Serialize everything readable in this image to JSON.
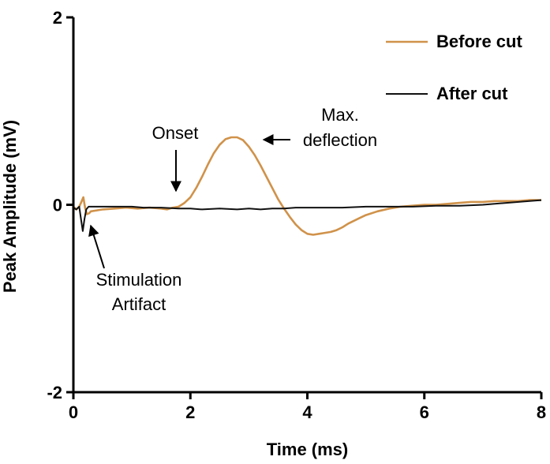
{
  "chart_data": {
    "type": "line",
    "title": "",
    "xlabel": "Time (ms)",
    "ylabel": "Peak Amplitude (mV)",
    "xlim": [
      0,
      8
    ],
    "ylim": [
      -2,
      2
    ],
    "xticks": [
      {
        "value": 0,
        "label": "0"
      },
      {
        "value": 2,
        "label": "2"
      },
      {
        "value": 4,
        "label": "4"
      },
      {
        "value": 6,
        "label": "6"
      },
      {
        "value": 8,
        "label": "8"
      }
    ],
    "yticks": [
      {
        "value": -2,
        "label": "-2"
      },
      {
        "value": 0,
        "label": "0"
      },
      {
        "value": 2,
        "label": "2"
      }
    ],
    "grid": false,
    "legend_position": "top-right",
    "series": [
      {
        "name": "Before cut",
        "color": "#d0924a",
        "x": [
          0.0,
          0.05,
          0.1,
          0.13,
          0.17,
          0.2,
          0.23,
          0.27,
          0.3,
          0.4,
          0.5,
          0.7,
          0.9,
          1.1,
          1.3,
          1.5,
          1.6,
          1.7,
          1.8,
          1.9,
          2.0,
          2.1,
          2.2,
          2.3,
          2.4,
          2.5,
          2.6,
          2.7,
          2.8,
          2.9,
          3.0,
          3.1,
          3.2,
          3.3,
          3.4,
          3.5,
          3.6,
          3.7,
          3.8,
          3.9,
          4.0,
          4.1,
          4.2,
          4.3,
          4.4,
          4.5,
          4.6,
          4.7,
          4.8,
          4.9,
          5.0,
          5.2,
          5.4,
          5.6,
          5.8,
          6.0,
          6.2,
          6.4,
          6.6,
          6.8,
          7.0,
          7.2,
          7.4,
          7.6,
          7.8,
          8.0
        ],
        "values": [
          -0.02,
          -0.05,
          -0.02,
          0.02,
          0.08,
          -0.03,
          -0.1,
          -0.09,
          -0.07,
          -0.06,
          -0.05,
          -0.04,
          -0.03,
          -0.04,
          -0.03,
          -0.04,
          -0.05,
          -0.03,
          -0.02,
          0.02,
          0.08,
          0.18,
          0.3,
          0.43,
          0.55,
          0.64,
          0.7,
          0.72,
          0.72,
          0.69,
          0.62,
          0.53,
          0.42,
          0.3,
          0.18,
          0.06,
          -0.04,
          -0.13,
          -0.21,
          -0.27,
          -0.31,
          -0.32,
          -0.31,
          -0.3,
          -0.29,
          -0.27,
          -0.24,
          -0.2,
          -0.17,
          -0.14,
          -0.11,
          -0.07,
          -0.04,
          -0.02,
          -0.01,
          0.0,
          0.0,
          0.01,
          0.02,
          0.03,
          0.03,
          0.04,
          0.04,
          0.04,
          0.05,
          0.05
        ]
      },
      {
        "name": "After cut",
        "color": "#111111",
        "x": [
          0.0,
          0.05,
          0.1,
          0.13,
          0.16,
          0.19,
          0.22,
          0.26,
          0.3,
          0.5,
          0.8,
          1.0,
          1.2,
          1.5,
          1.8,
          2.0,
          2.2,
          2.5,
          2.8,
          3.0,
          3.2,
          3.4,
          3.6,
          3.8,
          4.0,
          4.3,
          4.6,
          5.0,
          5.4,
          5.8,
          6.2,
          6.6,
          7.0,
          7.4,
          7.8,
          8.0
        ],
        "values": [
          -0.03,
          -0.05,
          -0.02,
          -0.15,
          -0.28,
          -0.15,
          -0.05,
          -0.02,
          -0.02,
          -0.02,
          -0.02,
          -0.02,
          -0.03,
          -0.03,
          -0.04,
          -0.04,
          -0.05,
          -0.04,
          -0.05,
          -0.04,
          -0.05,
          -0.04,
          -0.04,
          -0.03,
          -0.03,
          -0.03,
          -0.03,
          -0.02,
          -0.02,
          -0.02,
          -0.01,
          -0.01,
          0.0,
          0.02,
          0.04,
          0.05
        ]
      }
    ],
    "annotations": [
      {
        "name": "onset",
        "lines": [
          "Onset"
        ],
        "arrow_to": {
          "x": 1.78,
          "y": 0.1
        },
        "arrow_dir": "down"
      },
      {
        "name": "max-deflection",
        "lines": [
          "Max.",
          "deflection"
        ],
        "arrow_to": {
          "x": 3.25,
          "y": 0.69
        },
        "arrow_dir": "left"
      },
      {
        "name": "stimulation-artifact",
        "lines": [
          "Stimulation",
          "Artifact"
        ],
        "arrow_to": {
          "x": 0.32,
          "y": -0.2
        },
        "arrow_dir": "up-left"
      }
    ]
  }
}
